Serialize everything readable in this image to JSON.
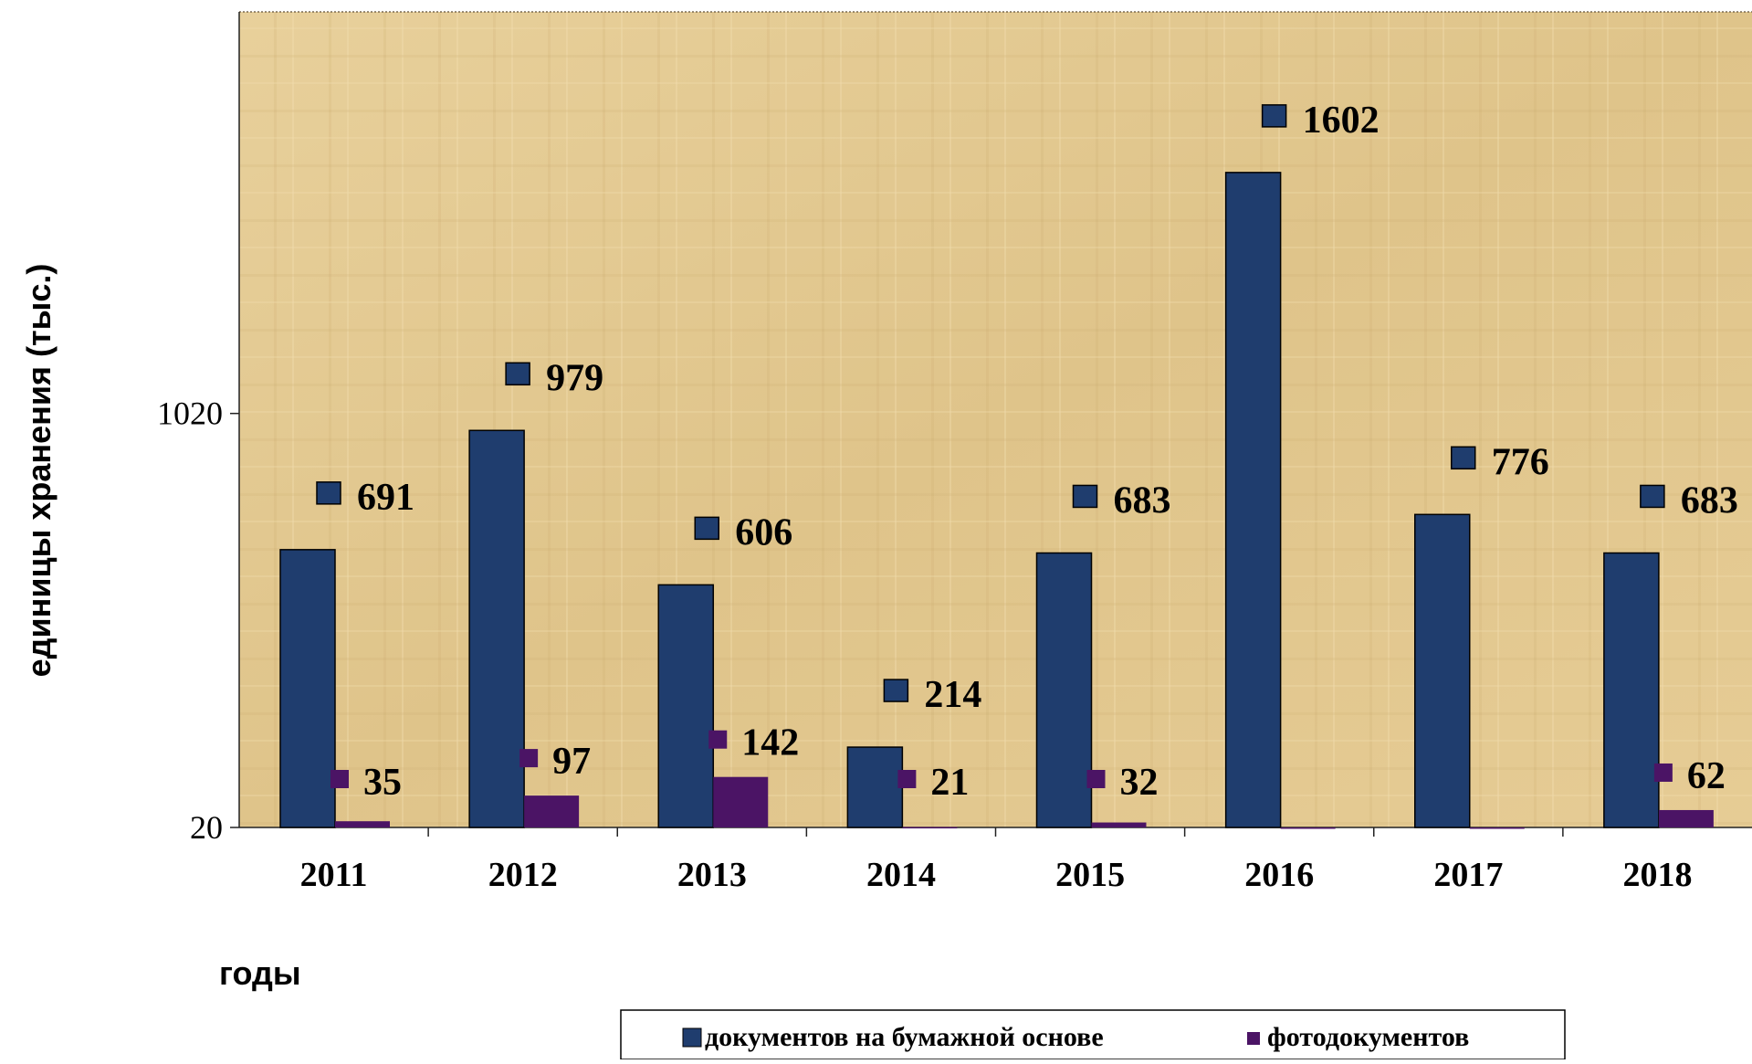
{
  "chart_data": {
    "type": "bar",
    "categories": [
      "2011",
      "2012",
      "2013",
      "2014",
      "2015",
      "2016",
      "2017",
      "2018"
    ],
    "series": [
      {
        "name": "документов на бумажной основе",
        "color": "#1f3d6e",
        "values": [
          691,
          979,
          606,
          214,
          683,
          1602,
          776,
          683
        ]
      },
      {
        "name": "фотодокументов",
        "color": "#4b1465",
        "values": [
          35,
          97,
          142,
          21,
          32,
          20,
          20,
          62
        ]
      }
    ],
    "data_labels": [
      [
        "691",
        "979",
        "606",
        "214",
        "683",
        "1602",
        "776",
        "683"
      ],
      [
        "35",
        "97",
        "142",
        "21",
        "32",
        "",
        "",
        "62"
      ]
    ],
    "xlabel": "годы",
    "ylabel": "единицы хранения (тыс.)",
    "yticks": [
      20,
      1020
    ],
    "ylim": [
      20,
      1990
    ],
    "legend_position": "bottom",
    "background": "parchment"
  }
}
